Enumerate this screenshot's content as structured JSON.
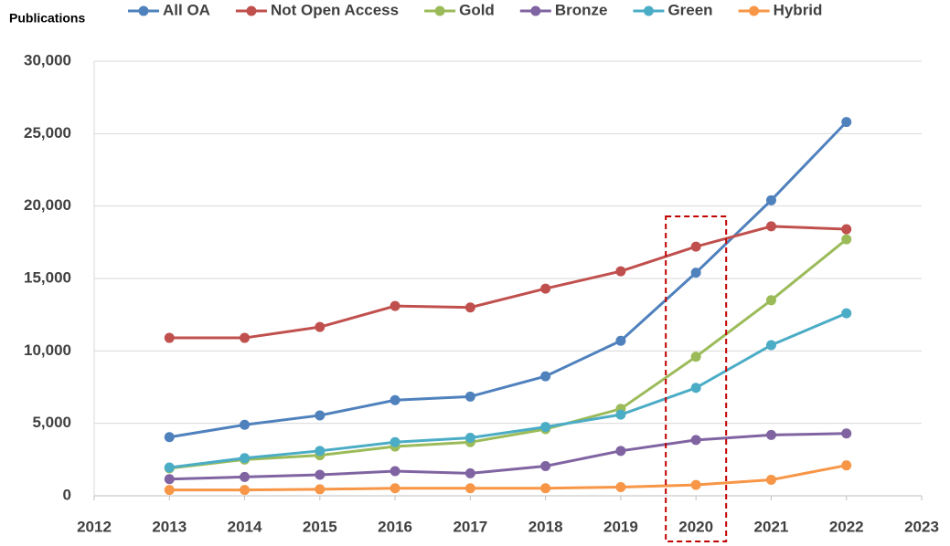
{
  "chart_data": {
    "type": "line",
    "y_label": "Publications",
    "x": [
      2013,
      2014,
      2015,
      2016,
      2017,
      2018,
      2019,
      2020,
      2021,
      2022
    ],
    "series": [
      {
        "name": "All OA",
        "color": "#4f81bd",
        "values": [
          4050,
          4900,
          5550,
          6600,
          6850,
          8250,
          10700,
          15400,
          20400,
          25800
        ]
      },
      {
        "name": "Not Open Access",
        "color": "#c0504d",
        "values": [
          10900,
          10900,
          11650,
          13100,
          13000,
          14300,
          15500,
          17200,
          18600,
          18400
        ]
      },
      {
        "name": "Gold",
        "color": "#9bbb59",
        "values": [
          1900,
          2500,
          2800,
          3400,
          3700,
          4600,
          6000,
          9600,
          13500,
          17700
        ]
      },
      {
        "name": "Bronze",
        "color": "#8064a2",
        "values": [
          1150,
          1300,
          1450,
          1700,
          1550,
          2050,
          3100,
          3850,
          4200,
          4300
        ]
      },
      {
        "name": "Green",
        "color": "#4bacc6",
        "values": [
          1950,
          2600,
          3100,
          3700,
          4000,
          4750,
          5600,
          7450,
          10400,
          12600
        ]
      },
      {
        "name": "Hybrid",
        "color": "#f79646",
        "values": [
          400,
          400,
          450,
          520,
          520,
          520,
          600,
          750,
          1100,
          2100
        ]
      }
    ],
    "xlim": [
      2012,
      2023
    ],
    "xticks": [
      2012,
      2013,
      2014,
      2015,
      2016,
      2017,
      2018,
      2019,
      2020,
      2021,
      2022,
      2023
    ],
    "ylim": [
      0,
      30000
    ],
    "yticks": [
      0,
      {
        "value": 5000,
        "label": "5,000"
      },
      {
        "value": 10000,
        "label": "10,000"
      },
      {
        "value": 15000,
        "label": "15,000"
      },
      {
        "value": 20000,
        "label": "20,000"
      },
      {
        "value": 25000,
        "label": "25,000"
      },
      {
        "value": 30000,
        "label": "30,000"
      }
    ],
    "grid": true,
    "legend": "top",
    "highlight_x": 2020,
    "highlight_color": "#c00000"
  }
}
